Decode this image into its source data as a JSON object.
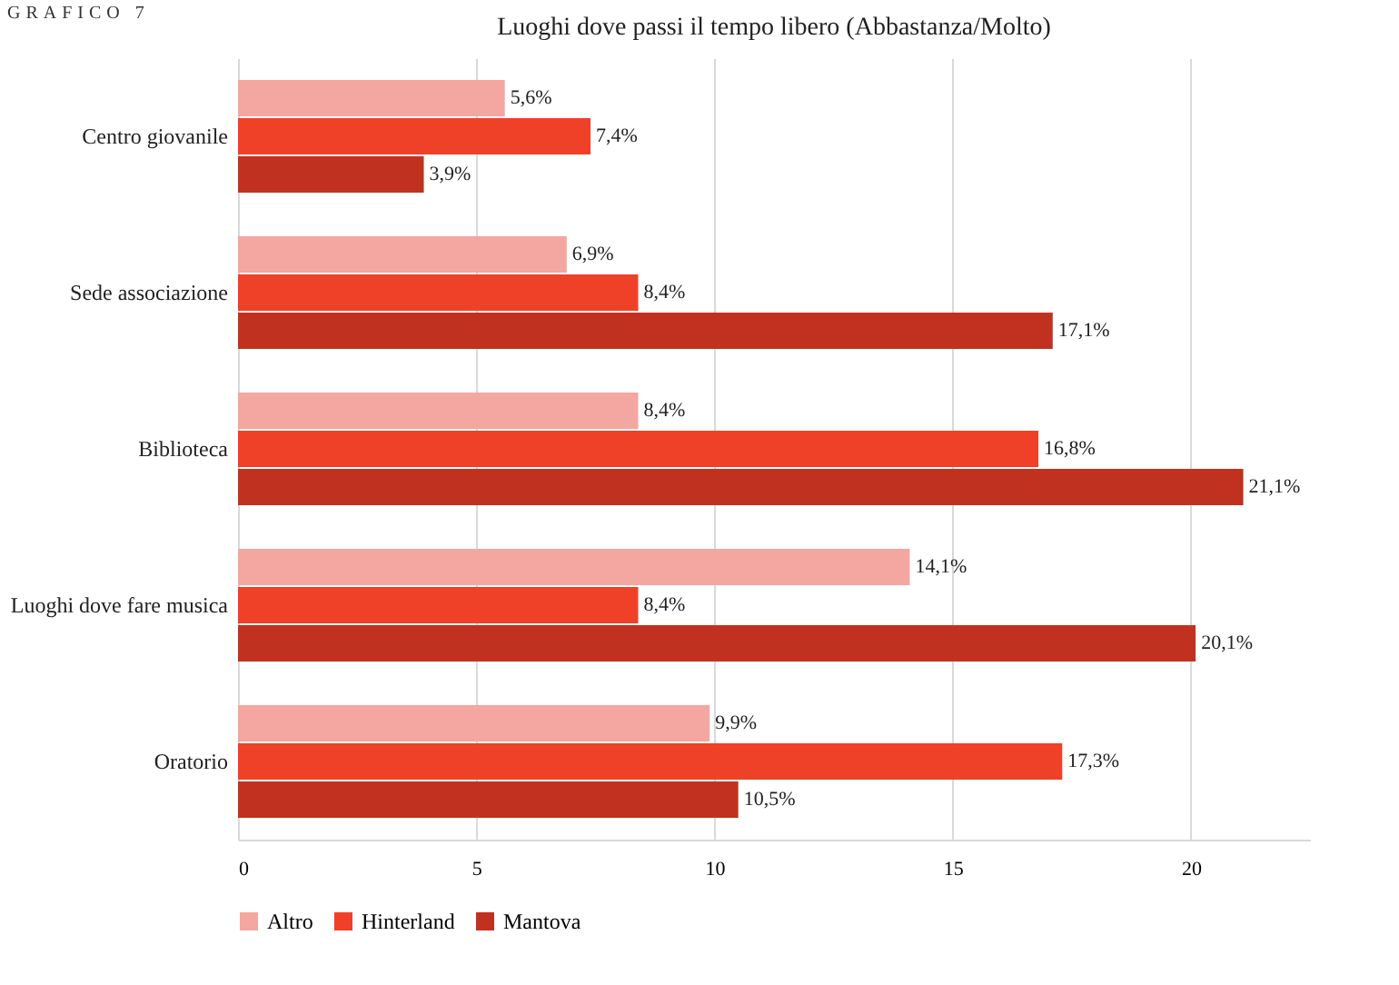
{
  "chart_data": {
    "type": "bar",
    "orientation": "horizontal",
    "title": "Luoghi dove passi il tempo libero (Abbastanza/Molto)",
    "annotations": [
      "GRAFICO 7"
    ],
    "categories": [
      "Centro giovanile",
      "Sede associazione",
      "Biblioteca",
      "Luoghi dove fare musica",
      "Oratorio"
    ],
    "series": [
      {
        "name": "Altro",
        "color": "#f4a6a0",
        "values": [
          5.6,
          6.9,
          8.4,
          14.1,
          9.9
        ],
        "value_labels": [
          "5,6%",
          "6,9%",
          "8,4%",
          "14,1%",
          "9,9%"
        ]
      },
      {
        "name": "Hinterland",
        "color": "#ee4128",
        "values": [
          7.4,
          8.4,
          16.8,
          8.4,
          17.3
        ],
        "value_labels": [
          "7,4%",
          "8,4%",
          "16,8%",
          "8,4%",
          "17,3%"
        ]
      },
      {
        "name": "Mantova",
        "color": "#c0321f",
        "values": [
          3.9,
          17.1,
          21.1,
          20.1,
          10.5
        ],
        "value_labels": [
          "3,9%",
          "17,1%",
          "21,1%",
          "20,1%",
          "10,5%"
        ]
      }
    ],
    "xlim": [
      0,
      22.5
    ],
    "xticks": [
      0,
      5,
      10,
      15,
      20
    ],
    "grid": "x",
    "legend": "bottom"
  }
}
